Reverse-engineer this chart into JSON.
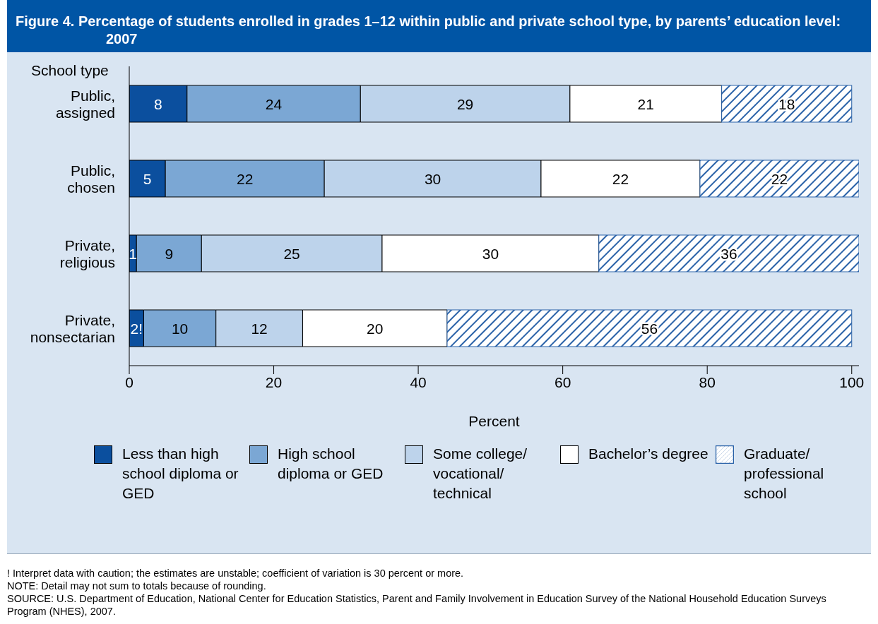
{
  "chart_data": {
    "type": "bar",
    "orientation": "horizontal",
    "stacked": true,
    "title": "Figure 4. Percentage of students enrolled in grades 1–12 within public and private school type, by parents’ education level: 2007",
    "ylabel": "School type",
    "xlabel": "Percent",
    "categories": [
      "Public, assigned",
      "Public, chosen",
      "Private, religious",
      "Private, nonsectarian"
    ],
    "series": [
      {
        "name": "Less than high school diploma or GED",
        "color": "#0b4f9e",
        "values": [
          8,
          5,
          1,
          2
        ],
        "value_labels": [
          "8",
          "5",
          "1",
          "2!"
        ]
      },
      {
        "name": "High school diploma or GED",
        "color": "#7ba7d4",
        "values": [
          24,
          22,
          9,
          10
        ],
        "value_labels": [
          "24",
          "22",
          "9",
          "10"
        ]
      },
      {
        "name": "Some college/ vocational/ technical",
        "color": "#bdd3eb",
        "values": [
          29,
          30,
          25,
          12
        ],
        "value_labels": [
          "29",
          "30",
          "25",
          "12"
        ]
      },
      {
        "name": "Bachelor’s degree",
        "color": "#ffffff",
        "values": [
          21,
          22,
          30,
          20
        ],
        "value_labels": [
          "21",
          "22",
          "30",
          "20"
        ]
      },
      {
        "name": "Graduate/ professional school",
        "color": "#2a62a8",
        "values": [
          18,
          22,
          36,
          56
        ],
        "value_labels": [
          "18",
          "22",
          "36",
          "56"
        ]
      }
    ],
    "xlim": [
      0,
      101
    ],
    "xticks": [
      0,
      20,
      40,
      60,
      80,
      100
    ],
    "grid": false,
    "legend": "bottom",
    "annotations": [
      "! Interpret data with caution; the estimates are unstable; coefficient of variation is 30 percent or more.",
      "NOTE: Detail may not sum to totals because of rounding.",
      "SOURCE: U.S. Department of Education, National Center for Education Statistics, Parent and Family Involvement in Education Survey of the National Household Education Surveys Program (NHES), 2007."
    ]
  }
}
